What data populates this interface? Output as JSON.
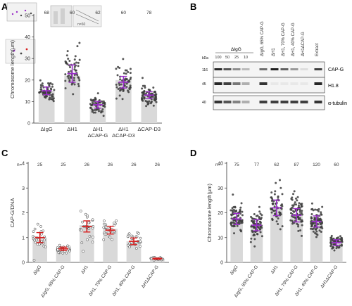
{
  "panels": {
    "A": {
      "letter": "A",
      "ylabel": "Chromosome length(μm)",
      "n_values": [
        "68",
        "60",
        "62",
        "60",
        "78"
      ],
      "inset_text": "n=60"
    },
    "B": {
      "letter": "B",
      "group_label": "ΔIgG",
      "dilutions": [
        "100",
        "50",
        "25",
        "10"
      ],
      "lane_labels": [
        "ΔIgG, 65% CAP-G",
        "ΔH1",
        "ΔH1, 70% CAP-G",
        "ΔH1, 40% CAP-G",
        "ΔH1ΔCAP-G",
        "Extract"
      ],
      "kda_header": "kDa",
      "mw_markers": [
        "116",
        "45",
        "40"
      ],
      "band_labels": [
        "CAP-G",
        "H1.8",
        "α-tubulin"
      ]
    },
    "C": {
      "letter": "C",
      "ylabel": "CAP-G/DNA",
      "n_prefix": "n=",
      "n_values": [
        "25",
        "25",
        "26",
        "26",
        "26",
        "26"
      ]
    },
    "D": {
      "letter": "D",
      "ylabel": "Chromosome length(μm)",
      "n_prefix": "n=",
      "n_values": [
        "75",
        "77",
        "62",
        "87",
        "120",
        "60"
      ]
    }
  },
  "chart_data": [
    {
      "panel": "A",
      "type": "scatter",
      "categories": [
        "ΔIgG",
        "ΔH1",
        "ΔH1\nΔCAP-G",
        "ΔH1\nΔCAP-D3",
        "ΔCAP-D3"
      ],
      "ylabel": "Chromosome length(μm)",
      "ylim": [
        0,
        50
      ],
      "yticks": [
        0,
        10,
        20,
        30,
        40,
        50
      ],
      "bar_values": [
        15,
        22,
        9,
        20,
        13
      ],
      "means": [
        15,
        23,
        8.5,
        19,
        13
      ],
      "spreads": [
        4,
        9,
        3.5,
        6,
        3.5
      ],
      "counts": [
        68,
        60,
        62,
        60,
        78
      ],
      "colors": {
        "bar": "#d9d9d9",
        "point": "#3c3c3c",
        "mean": "#9a30c8"
      }
    },
    {
      "panel": "C",
      "type": "scatter",
      "categories": [
        "ΔIgG",
        "ΔIgG, 65% CAP-G",
        "ΔH1",
        "ΔH1, 70% CAP-G",
        "ΔH1, 40% CAP-G",
        "ΔH1ΔCAP-G"
      ],
      "ylabel": "CAP-G/DNA",
      "ylim": [
        0,
        4
      ],
      "yticks": [
        0,
        1,
        2,
        3,
        4
      ],
      "bar_values": [
        1.0,
        0.55,
        1.5,
        1.35,
        0.85,
        0.15
      ],
      "means": [
        1.0,
        0.55,
        1.45,
        1.3,
        0.85,
        0.15
      ],
      "spreads": [
        0.45,
        0.15,
        0.5,
        0.35,
        0.3,
        0.05
      ],
      "counts": [
        25,
        25,
        26,
        26,
        26,
        26
      ],
      "colors": {
        "bar": "#d9d9d9",
        "point": "#ffffff",
        "point_stroke": "#333333",
        "mean": "#d62020"
      }
    },
    {
      "panel": "D",
      "type": "scatter",
      "categories": [
        "ΔIgG",
        "ΔIgG, 65% CAP-G",
        "ΔH1",
        "ΔH1, 70% CAP-G",
        "ΔH1, 40% CAP-G",
        "ΔH1ΔCAP-G"
      ],
      "ylabel": "Chromosome length(μm)",
      "ylim": [
        0,
        40
      ],
      "yticks": [
        0,
        10,
        20,
        30,
        40
      ],
      "bar_values": [
        17,
        15,
        22,
        19,
        17,
        8
      ],
      "means": [
        17.5,
        15,
        22,
        19,
        16.5,
        8
      ],
      "spreads": [
        5,
        5,
        7,
        6,
        5,
        2.5
      ],
      "counts": [
        75,
        77,
        62,
        87,
        120,
        60
      ],
      "colors": {
        "bar": "#d9d9d9",
        "point": "#3c3c3c",
        "mean": "#9a30c8"
      }
    }
  ]
}
